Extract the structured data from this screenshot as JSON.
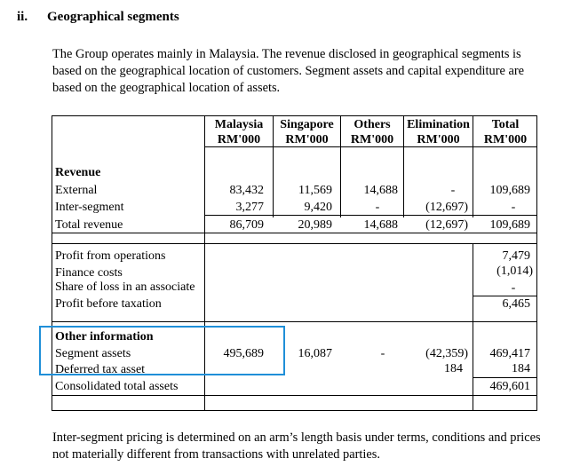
{
  "heading": {
    "number": "ii.",
    "title": "Geographical segments"
  },
  "intro": "The Group operates mainly in Malaysia. The revenue disclosed in geographical segments is based on the geographical location of customers. Segment assets and capital expenditure are based on the geographical location of assets.",
  "table": {
    "columns": [
      {
        "name": "Malaysia",
        "unit": "RM'000"
      },
      {
        "name": "Singapore",
        "unit": "RM'000"
      },
      {
        "name": "Others",
        "unit": "RM'000"
      },
      {
        "name": "Elimination",
        "unit": "RM'000"
      },
      {
        "name": "Total",
        "unit": "RM'000"
      }
    ],
    "revenue": {
      "title": "Revenue",
      "rows": [
        {
          "label": "External",
          "values": [
            "83,432",
            "11,569",
            "14,688",
            "-",
            "109,689"
          ]
        },
        {
          "label": "Inter-segment",
          "values": [
            "3,277",
            "9,420",
            "-",
            "(12,697)",
            "-"
          ]
        },
        {
          "label": "Total revenue",
          "values": [
            "86,709",
            "20,989",
            "14,688",
            "(12,697)",
            "109,689"
          ]
        }
      ]
    },
    "profit": {
      "rows": [
        {
          "label": "Profit from operations",
          "total": "7,479"
        },
        {
          "label": "Finance costs",
          "total": "(1,014)"
        },
        {
          "label": "Share of loss in an associate",
          "total": "-"
        },
        {
          "label": "Profit before taxation",
          "total": "6,465"
        }
      ]
    },
    "other": {
      "title": "Other information",
      "rows": [
        {
          "label": "Segment assets",
          "values": [
            "495,689",
            "16,087",
            "-",
            "(42,359)",
            "469,417"
          ]
        },
        {
          "label": "Deferred tax asset",
          "values": [
            "",
            "",
            "",
            "184",
            "184"
          ]
        },
        {
          "label": "Consolidated total assets",
          "values": [
            "",
            "",
            "",
            "",
            "469,601"
          ]
        }
      ]
    }
  },
  "footer": "Inter-segment pricing is determined on an arm’s length basis under terms, conditions and prices not materially different from transactions with unrelated parties."
}
